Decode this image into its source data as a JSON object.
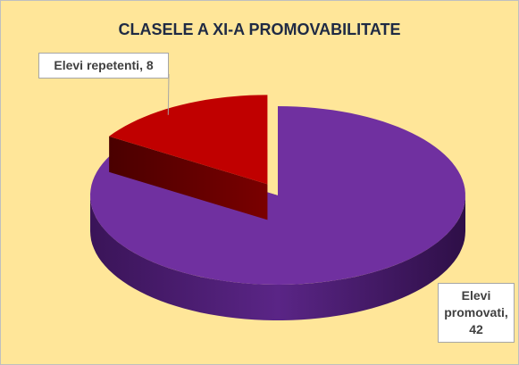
{
  "chart_data": {
    "type": "pie",
    "title": "CLASELE A XI-A PROMOVABILITATE",
    "categories": [
      "Elevi repetenti",
      "Elevi promovati"
    ],
    "values": [
      8,
      42
    ],
    "value_labels": [
      "Elevi repetenti, 8",
      "Elevi promovati, 42"
    ],
    "colors": [
      "#c00000",
      "#7030a0"
    ]
  }
}
